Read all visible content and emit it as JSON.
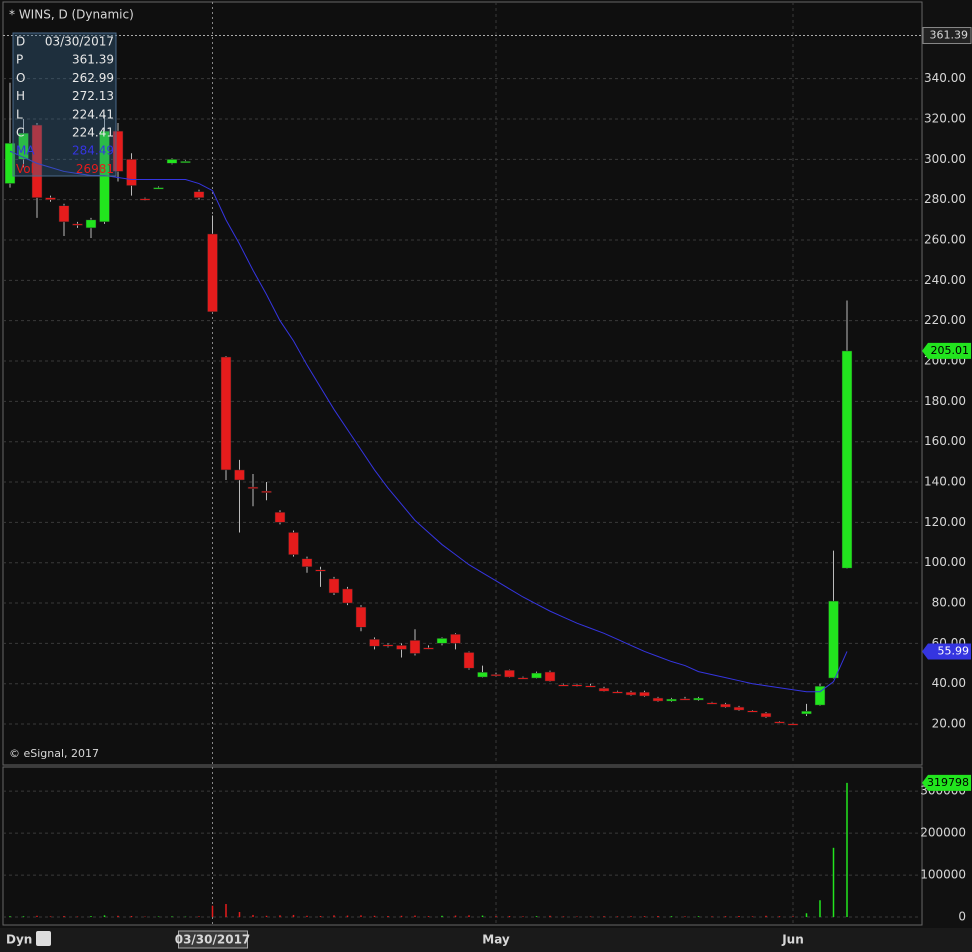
{
  "chart_data": [
    {
      "type": "candlestick",
      "title": "* WINS, D (Dynamic)",
      "copyright": "© eSignal, 2017",
      "footer_label": "Dyn",
      "categories": [
        null,
        null,
        null,
        null,
        null,
        null,
        null,
        null,
        null,
        null,
        null,
        null,
        null,
        null,
        null,
        "03/30/2017",
        null,
        null,
        null,
        null,
        null,
        null,
        null,
        null,
        null,
        null,
        null,
        null,
        null,
        null,
        null,
        null,
        null,
        null,
        null,
        null,
        "May",
        null,
        null,
        null,
        null,
        null,
        null,
        null,
        null,
        null,
        null,
        null,
        null,
        null,
        null,
        null,
        null,
        null,
        null,
        null,
        null,
        null,
        "Jun",
        null,
        null,
        null,
        null
      ],
      "open": [
        288,
        300,
        317,
        281,
        277,
        268,
        266,
        269,
        314,
        300,
        280.5,
        286,
        298,
        299,
        284,
        262.99,
        202,
        146,
        137.5,
        135.5,
        125,
        115,
        102,
        96.5,
        92,
        87,
        78,
        62,
        59.3,
        59,
        61.5,
        57.8,
        60,
        64.5,
        55.5,
        43.3,
        44.6,
        46.7,
        43,
        42.8,
        45.8,
        39.5,
        39.5,
        39,
        37.8,
        36,
        35.8,
        35.8,
        32.9,
        31.4,
        32.6,
        31.9,
        30.6,
        29.9,
        28.4,
        26.6,
        25.4,
        21.2,
        20.2,
        25,
        29.4,
        42.8,
        97.3
      ],
      "high": [
        338,
        320,
        318,
        282,
        278,
        269,
        271,
        322,
        318,
        303,
        281,
        286.5,
        300.5,
        299.5,
        285,
        272.13,
        202.5,
        151,
        144,
        140,
        126,
        116,
        103,
        98,
        93,
        88,
        79,
        63,
        60,
        60,
        67,
        59,
        63,
        65,
        56,
        49,
        45.5,
        47,
        43.5,
        46,
        46.5,
        40,
        40,
        40,
        38.5,
        36.5,
        36.5,
        36.5,
        33.5,
        33,
        33.5,
        33.5,
        31,
        30.5,
        29,
        27,
        26,
        21.5,
        20.5,
        30,
        40,
        106,
        230
      ],
      "low": [
        286,
        296,
        271,
        279,
        262,
        266,
        261,
        268,
        289,
        282,
        279.5,
        285.5,
        297.5,
        298.5,
        280,
        224.41,
        141,
        115,
        128,
        131,
        119,
        103,
        95,
        88,
        84,
        79,
        66,
        57,
        58,
        53,
        54,
        57,
        59,
        57,
        47,
        43,
        43.5,
        43,
        42.5,
        42.5,
        41,
        39,
        38.5,
        38.5,
        36,
        35.5,
        34,
        33.5,
        31,
        31,
        32,
        31.5,
        30,
        28,
        26.5,
        26,
        23,
        20.5,
        19.5,
        24,
        29,
        42.5,
        97
      ],
      "close": [
        308,
        313,
        281,
        280,
        269,
        267.5,
        270,
        314,
        294,
        287,
        280,
        286,
        300,
        299,
        281,
        224.41,
        146,
        141,
        137,
        135,
        120,
        104,
        98,
        96,
        85,
        80,
        68,
        58.6,
        59,
        57,
        55,
        57.5,
        62.5,
        60,
        47.7,
        45.7,
        44.3,
        43.3,
        42.8,
        45.3,
        41.3,
        39.3,
        39.3,
        38.8,
        36.3,
        35.8,
        34.4,
        33.9,
        31.4,
        32.4,
        32.4,
        32.9,
        30.4,
        28.4,
        26.9,
        26.4,
        23.5,
        21,
        20,
        26.4,
        38.8,
        81,
        205.01
      ],
      "up_color": "#22e51e",
      "down_color": "#e51c1c",
      "ma": {
        "name": "MA",
        "color": "#3535e0",
        "values": [
          304,
          301,
          298,
          296,
          294,
          293,
          292,
          292,
          291,
          290,
          290,
          290,
          290,
          290,
          288,
          284.49,
          270,
          258,
          245,
          233,
          220,
          210,
          198,
          187,
          176,
          166,
          156,
          146,
          137,
          129,
          121,
          115,
          109,
          104,
          99,
          95,
          91,
          87,
          83,
          79.5,
          76,
          73,
          70,
          67.5,
          65,
          62,
          59,
          56,
          53.5,
          51,
          49,
          46,
          44.5,
          43,
          41.5,
          40,
          39,
          38,
          37,
          36,
          36,
          41,
          55.99
        ]
      },
      "price_line": 361.39,
      "ylim": [
        0,
        379
      ],
      "yticks": [
        {
          "value": 20,
          "label": "20.00"
        },
        {
          "value": 40,
          "label": "40.00"
        },
        {
          "value": 60,
          "label": "60.00"
        },
        {
          "value": 80,
          "label": "80.00"
        },
        {
          "value": 100,
          "label": "100.00"
        },
        {
          "value": 120,
          "label": "120.00"
        },
        {
          "value": 140,
          "label": "140.00"
        },
        {
          "value": 160,
          "label": "160.00"
        },
        {
          "value": 180,
          "label": "180.00"
        },
        {
          "value": 200,
          "label": "200.00"
        },
        {
          "value": 220,
          "label": "220.00"
        },
        {
          "value": 240,
          "label": "240.00"
        },
        {
          "value": 260,
          "label": "260.00"
        },
        {
          "value": 280,
          "label": "280.00"
        },
        {
          "value": 300,
          "label": "300.00"
        },
        {
          "value": 320,
          "label": "320.00"
        },
        {
          "value": 340,
          "label": "340.00"
        }
      ],
      "grid": true,
      "info": {
        "labels": [
          "D",
          "P",
          "O",
          "H",
          "L",
          "C",
          "MA",
          "Vol"
        ],
        "values": [
          "03/30/2017",
          "361.39",
          "262.99",
          "272.13",
          "224.41",
          "224.41",
          "284.49",
          "26981"
        ]
      }
    },
    {
      "type": "volume",
      "values": [
        2000,
        1800,
        3000,
        1500,
        2500,
        1200,
        2200,
        4000,
        3000,
        2500,
        1000,
        1200,
        1500,
        900,
        1600,
        26981,
        31000,
        12000,
        5000,
        3000,
        4000,
        5000,
        3000,
        2500,
        4000,
        3500,
        4000,
        3000,
        2500,
        3000,
        3500,
        2000,
        3000,
        3500,
        4000,
        3500,
        2000,
        2500,
        1500,
        2000,
        3000,
        1500,
        1200,
        1500,
        2000,
        1500,
        1800,
        2000,
        2500,
        2000,
        1500,
        1800,
        1500,
        2000,
        2500,
        1500,
        3000,
        2000,
        1500,
        9000,
        40000,
        165000,
        319798
      ],
      "ylim": [
        -19000,
        360000
      ],
      "yticks": [
        0,
        100000,
        200000,
        300000
      ],
      "grid": true
    }
  ]
}
